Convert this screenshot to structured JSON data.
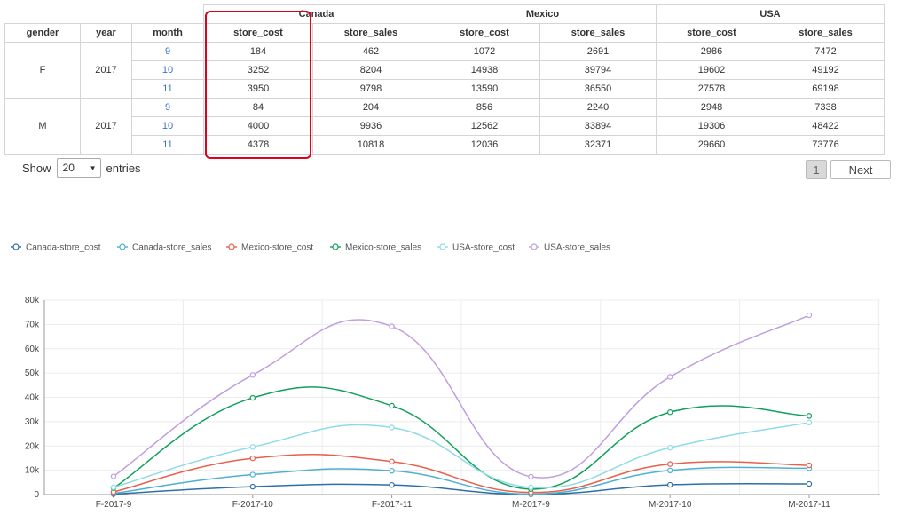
{
  "table": {
    "row_headers": [
      "gender",
      "year",
      "month"
    ],
    "countries": [
      "Canada",
      "Mexico",
      "USA"
    ],
    "measures": [
      "store_cost",
      "store_sales"
    ],
    "rows": [
      {
        "gender": "F",
        "year": "2017",
        "month": "9",
        "values": [
          "184",
          "462",
          "1072",
          "2691",
          "2986",
          "7472"
        ]
      },
      {
        "gender": "",
        "year": "",
        "month": "10",
        "values": [
          "3252",
          "8204",
          "14938",
          "39794",
          "19602",
          "49192"
        ]
      },
      {
        "gender": "",
        "year": "",
        "month": "11",
        "values": [
          "3950",
          "9798",
          "13590",
          "36550",
          "27578",
          "69198"
        ]
      },
      {
        "gender": "M",
        "year": "2017",
        "month": "9",
        "values": [
          "84",
          "204",
          "856",
          "2240",
          "2948",
          "7338"
        ]
      },
      {
        "gender": "",
        "year": "",
        "month": "10",
        "values": [
          "4000",
          "9936",
          "12562",
          "33894",
          "19306",
          "48422"
        ]
      },
      {
        "gender": "",
        "year": "",
        "month": "11",
        "values": [
          "4378",
          "10818",
          "12036",
          "32371",
          "29660",
          "73776"
        ]
      }
    ]
  },
  "controls": {
    "show_label": "Show",
    "entries_value": "20",
    "entries_label": "entries",
    "page_number": "1",
    "next_label": "Next"
  },
  "chart_data": {
    "type": "line",
    "categories": [
      "F-2017-9",
      "F-2017-10",
      "F-2017-11",
      "M-2017-9",
      "M-2017-10",
      "M-2017-11"
    ],
    "series": [
      {
        "name": "Canada-store_cost",
        "color": "#2f6fa8",
        "values": [
          184,
          3252,
          3950,
          84,
          4000,
          4378
        ]
      },
      {
        "name": "Canada-store_sales",
        "color": "#4db0d0",
        "values": [
          462,
          8204,
          9798,
          204,
          9936,
          10818
        ]
      },
      {
        "name": "Mexico-store_cost",
        "color": "#e8604c",
        "values": [
          1072,
          14938,
          13590,
          856,
          12562,
          12036
        ]
      },
      {
        "name": "Mexico-store_sales",
        "color": "#10a05a",
        "values": [
          2691,
          39794,
          36550,
          2240,
          33894,
          32371
        ]
      },
      {
        "name": "USA-store_cost",
        "color": "#8edbe8",
        "values": [
          2986,
          19602,
          27578,
          2948,
          19306,
          29660
        ]
      },
      {
        "name": "USA-store_sales",
        "color": "#c09ee0",
        "values": [
          7472,
          49192,
          69198,
          7338,
          48422,
          73776
        ]
      }
    ],
    "yticks": [
      "0",
      "10k",
      "20k",
      "30k",
      "40k",
      "50k",
      "60k",
      "70k",
      "80k"
    ],
    "ylim": [
      0,
      80000
    ],
    "grid": true,
    "legend_position": "top-left"
  }
}
